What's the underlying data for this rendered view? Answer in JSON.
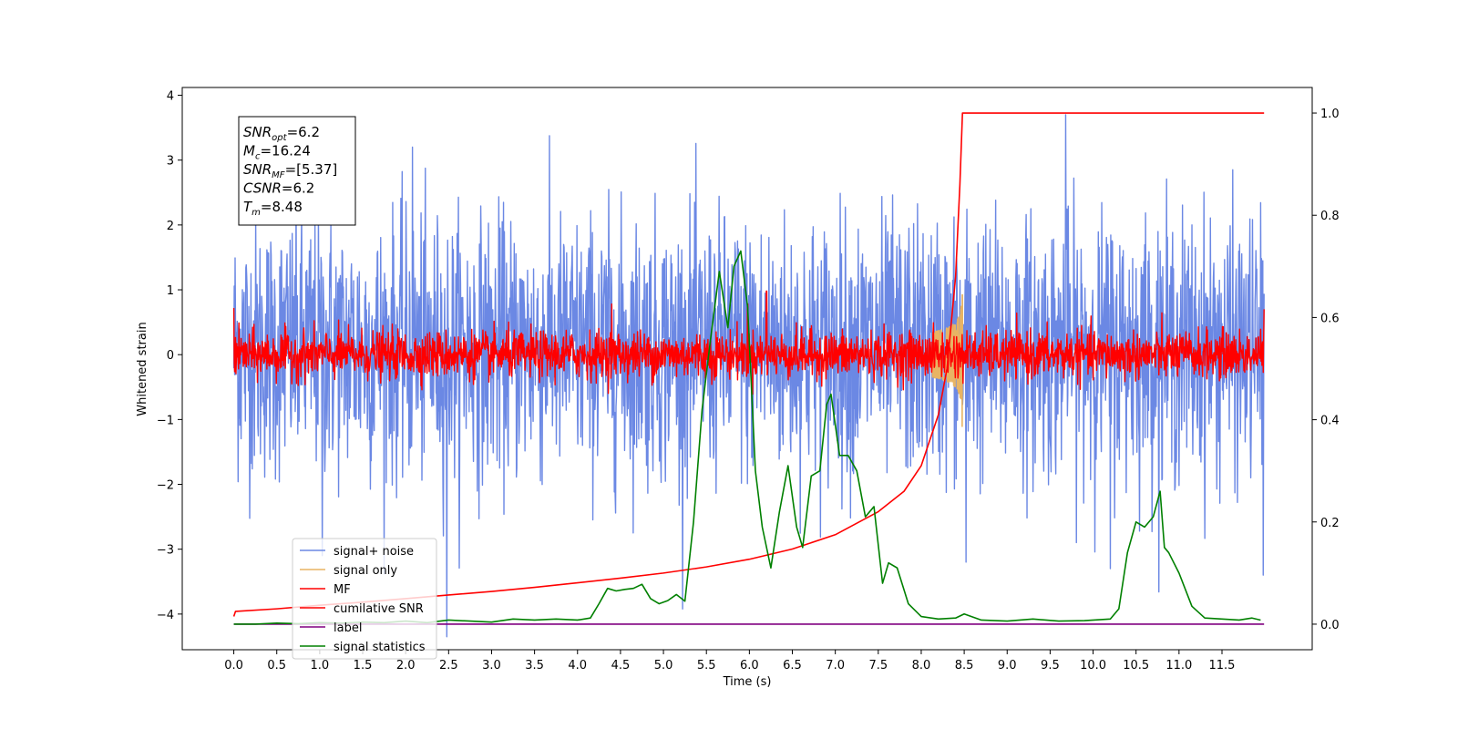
{
  "chart_data": {
    "type": "line",
    "xlabel": "Time (s)",
    "ylabel": "Whitened strain",
    "xlim": [
      -0.6,
      12.55
    ],
    "ylim": [
      -4.55,
      4.12
    ],
    "ylim_right": [
      -0.05,
      1.05
    ],
    "x_ticks": [
      "0.0",
      "0.5",
      "1.0",
      "1.5",
      "2.0",
      "2.5",
      "3.0",
      "3.5",
      "4.0",
      "4.5",
      "5.0",
      "5.5",
      "6.0",
      "6.5",
      "7.0",
      "7.5",
      "8.0",
      "8.5",
      "9.0",
      "9.5",
      "10.0",
      "10.5",
      "11.0",
      "11.5"
    ],
    "y_ticks_left": [
      "4",
      "3",
      "2",
      "1",
      "0",
      "−1",
      "−2",
      "−3",
      "−4"
    ],
    "y_ticks_right": [
      "1.0",
      "0.8",
      "0.6",
      "0.4",
      "0.2",
      "0.0"
    ],
    "grid": false,
    "legend_position": "lower-left",
    "info_box": {
      "lines": [
        {
          "sym": "SNR",
          "sub": "opt",
          "value": "=6.2"
        },
        {
          "sym": "M",
          "sub": "c",
          "value": "=16.24"
        },
        {
          "sym": "SNR",
          "sub": "MF",
          "value": "=[5.37]"
        },
        {
          "sym": "CSNR",
          "sub": "",
          "value": "=6.2"
        },
        {
          "sym": "T",
          "sub": "m",
          "value": "=8.48"
        }
      ]
    },
    "series": [
      {
        "name": "signal+ noise",
        "axis": "left",
        "color": "#6b88e4",
        "kind": "noise",
        "x_range": [
          0,
          11.99
        ],
        "mean": 0.1,
        "std": 1.0,
        "spikes": [
          [
            1.03,
            -3.1
          ],
          [
            2.08,
            3.2
          ],
          [
            2.48,
            -4.35
          ],
          [
            9.68,
            3.7
          ],
          [
            8.52,
            -3.2
          ],
          [
            10.2,
            -3.3
          ],
          [
            11.98,
            -3.4
          ]
        ]
      },
      {
        "name": "signal only",
        "axis": "left",
        "color": "#e8b464",
        "kind": "chirp",
        "t_merge": 8.48,
        "amplitude": 1.15
      },
      {
        "name": "MF",
        "axis": "left",
        "color": "#ff0000",
        "kind": "noise",
        "x_range": [
          0,
          11.99
        ],
        "mean": 0.0,
        "std": 0.18,
        "spikes": [
          [
            0.0,
            0.72
          ],
          [
            4.4,
            0.78
          ],
          [
            5.98,
            0.78
          ],
          [
            6.2,
            0.98
          ],
          [
            11.99,
            0.7
          ]
        ]
      },
      {
        "name": "cumilative SNR",
        "axis": "right",
        "color": "#ff0000",
        "kind": "line",
        "x": [
          0.0,
          0.02,
          0.5,
          1.0,
          1.5,
          2.0,
          2.5,
          3.0,
          3.5,
          4.0,
          4.5,
          5.0,
          5.5,
          6.0,
          6.5,
          7.0,
          7.5,
          7.8,
          8.0,
          8.2,
          8.3,
          8.4,
          8.45,
          8.48,
          8.5,
          9.0,
          10.0,
          11.0,
          11.99
        ],
        "y": [
          0.015,
          0.025,
          0.03,
          0.037,
          0.043,
          0.05,
          0.057,
          0.064,
          0.072,
          0.081,
          0.09,
          0.1,
          0.112,
          0.127,
          0.147,
          0.175,
          0.22,
          0.26,
          0.31,
          0.41,
          0.5,
          0.68,
          0.86,
          1.0,
          1.0,
          1.0,
          1.0,
          1.0,
          1.0
        ]
      },
      {
        "name": "label",
        "axis": "right",
        "color": "#800080",
        "kind": "line",
        "x": [
          0.0,
          11.99
        ],
        "y": [
          0.0,
          0.0
        ]
      },
      {
        "name": "signal statistics",
        "axis": "right",
        "color": "#008000",
        "kind": "line",
        "x": [
          0.0,
          0.25,
          0.5,
          0.75,
          1.0,
          1.25,
          1.5,
          1.75,
          2.0,
          2.25,
          2.5,
          2.75,
          3.0,
          3.25,
          3.5,
          3.75,
          4.0,
          4.15,
          4.25,
          4.35,
          4.45,
          4.55,
          4.65,
          4.75,
          4.85,
          4.95,
          5.05,
          5.15,
          5.25,
          5.35,
          5.45,
          5.55,
          5.65,
          5.75,
          5.82,
          5.9,
          5.98,
          6.07,
          6.15,
          6.25,
          6.35,
          6.45,
          6.55,
          6.62,
          6.72,
          6.82,
          6.9,
          6.95,
          7.05,
          7.15,
          7.25,
          7.35,
          7.45,
          7.55,
          7.62,
          7.72,
          7.85,
          8.0,
          8.2,
          8.4,
          8.5,
          8.7,
          9.0,
          9.3,
          9.6,
          9.9,
          10.2,
          10.3,
          10.4,
          10.5,
          10.6,
          10.7,
          10.78,
          10.83,
          10.88,
          11.0,
          11.15,
          11.3,
          11.5,
          11.7,
          11.85,
          11.95
        ],
        "y": [
          0.0,
          0.0,
          0.002,
          0.001,
          0.003,
          0.002,
          0.004,
          0.003,
          0.006,
          0.003,
          0.008,
          0.006,
          0.004,
          0.01,
          0.008,
          0.01,
          0.008,
          0.012,
          0.04,
          0.07,
          0.065,
          0.068,
          0.07,
          0.078,
          0.05,
          0.04,
          0.046,
          0.058,
          0.045,
          0.2,
          0.42,
          0.56,
          0.69,
          0.58,
          0.7,
          0.73,
          0.62,
          0.3,
          0.19,
          0.11,
          0.22,
          0.31,
          0.19,
          0.15,
          0.29,
          0.3,
          0.43,
          0.45,
          0.33,
          0.33,
          0.3,
          0.21,
          0.23,
          0.08,
          0.12,
          0.11,
          0.04,
          0.015,
          0.01,
          0.012,
          0.02,
          0.008,
          0.006,
          0.01,
          0.006,
          0.007,
          0.01,
          0.03,
          0.14,
          0.2,
          0.19,
          0.21,
          0.26,
          0.15,
          0.14,
          0.1,
          0.035,
          0.012,
          0.01,
          0.008,
          0.012,
          0.008
        ]
      }
    ]
  }
}
